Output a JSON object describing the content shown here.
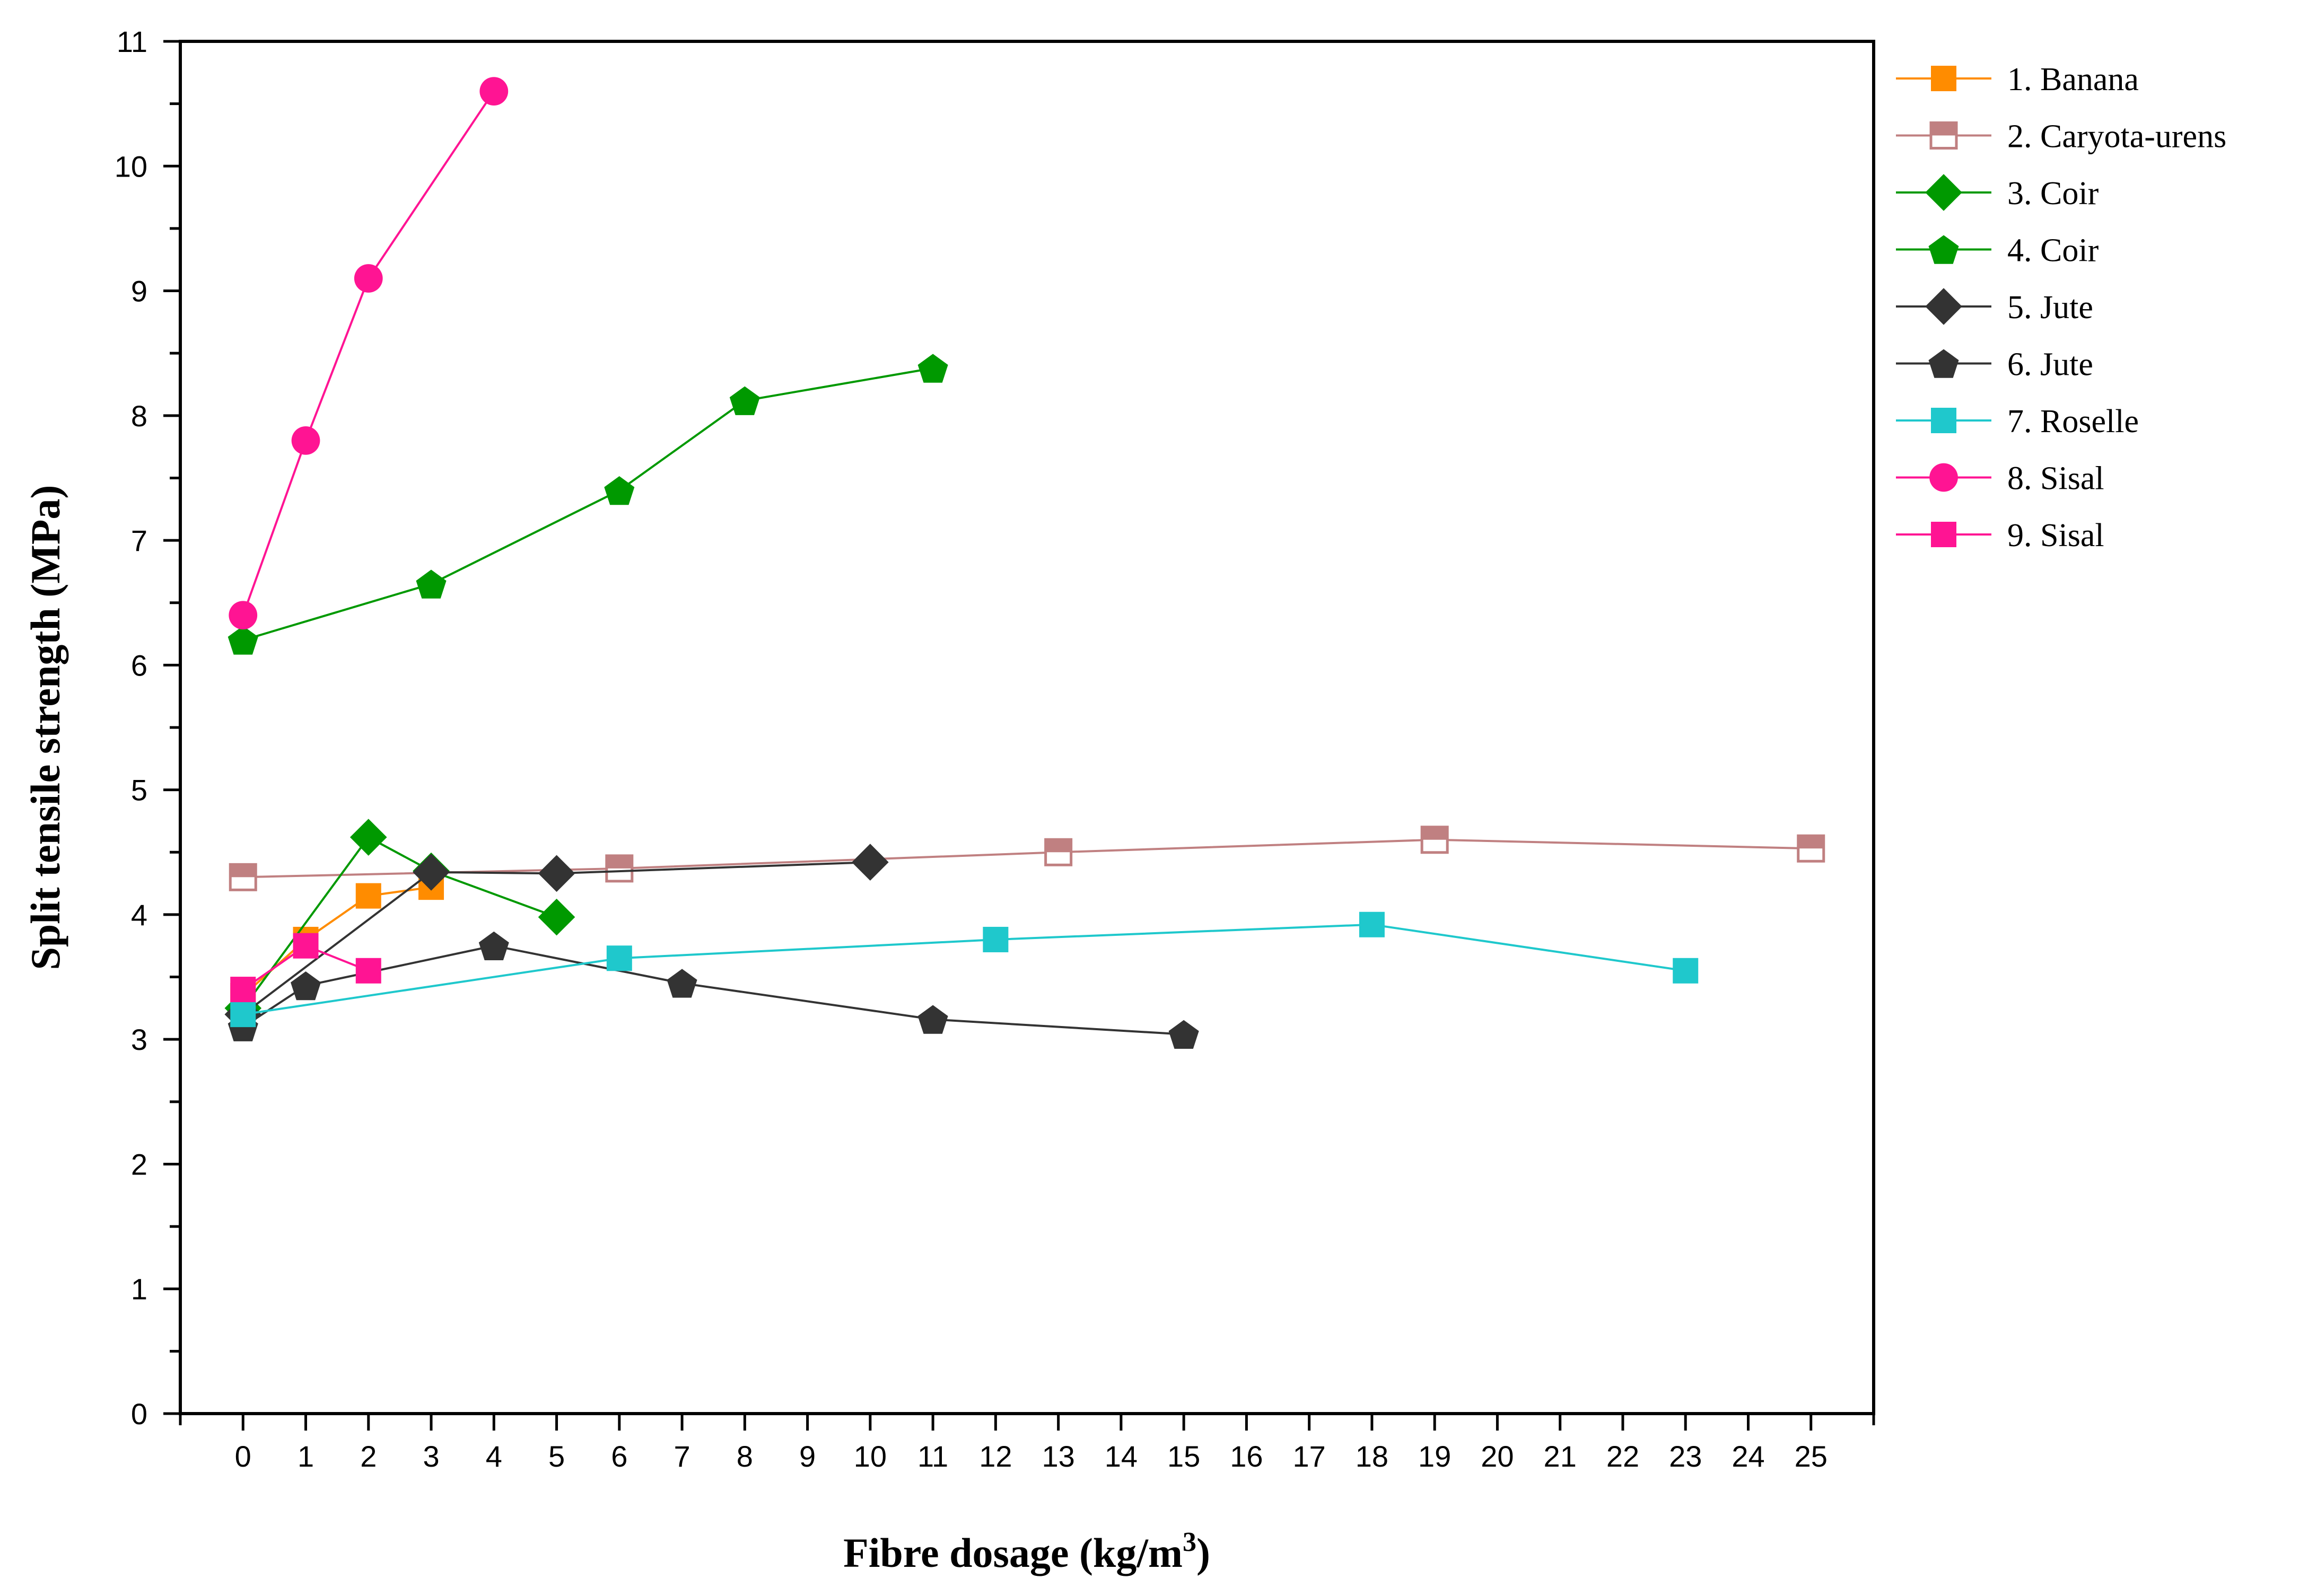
{
  "chart_data": {
    "type": "line",
    "title": "",
    "xlabel": "Fibre dosage (kg/m",
    "xlabel_superscript": "3",
    "xlabel_suffix": ")",
    "ylabel": "Split tensile strength (MPa)",
    "xlim": [
      -1,
      26
    ],
    "ylim": [
      0,
      11
    ],
    "x_ticks": [
      "0",
      "1",
      "2",
      "3",
      "4",
      "5",
      "6",
      "7",
      "8",
      "9",
      "10",
      "11",
      "12",
      "13",
      "14",
      "15",
      "16",
      "17",
      "18",
      "19",
      "20",
      "21",
      "22",
      "23",
      "24",
      "25"
    ],
    "y_ticks": [
      "0",
      "1",
      "2",
      "3",
      "4",
      "5",
      "6",
      "7",
      "8",
      "9",
      "10",
      "11"
    ],
    "grid": false,
    "legend_position": "right",
    "series": [
      {
        "name": "1. Banana",
        "color": "#FF8C00",
        "marker": "square",
        "x": [
          0,
          1,
          2,
          3
        ],
        "y": [
          3.35,
          3.8,
          4.15,
          4.22
        ]
      },
      {
        "name": "2. Caryota-urens",
        "color": "#C08081",
        "marker": "half-square",
        "x": [
          0,
          6,
          13,
          19,
          25
        ],
        "y": [
          4.3,
          4.37,
          4.5,
          4.6,
          4.53
        ]
      },
      {
        "name": "3. Coir",
        "color": "#009900",
        "marker": "diamond",
        "x": [
          0,
          2,
          3,
          5
        ],
        "y": [
          3.25,
          4.62,
          4.35,
          3.98
        ]
      },
      {
        "name": "4. Coir",
        "color": "#009900",
        "marker": "pentagon",
        "x": [
          0,
          3,
          6,
          8,
          11
        ],
        "y": [
          6.2,
          6.65,
          7.4,
          8.12,
          8.38
        ]
      },
      {
        "name": "5. Jute",
        "color": "#333333",
        "marker": "diamond",
        "x": [
          0,
          3,
          5,
          10
        ],
        "y": [
          3.2,
          4.34,
          4.33,
          4.42
        ]
      },
      {
        "name": "6. Jute",
        "color": "#333333",
        "marker": "pentagon",
        "x": [
          0,
          1,
          4,
          7,
          11,
          15
        ],
        "y": [
          3.1,
          3.43,
          3.75,
          3.45,
          3.16,
          3.04
        ]
      },
      {
        "name": "7. Roselle",
        "color": "#1FC8CC",
        "marker": "square",
        "x": [
          0,
          6,
          12,
          18,
          23
        ],
        "y": [
          3.2,
          3.65,
          3.8,
          3.92,
          3.55
        ]
      },
      {
        "name": "8. Sisal",
        "color": "#FF1493",
        "marker": "circle",
        "x": [
          0,
          1,
          2,
          4
        ],
        "y": [
          6.4,
          7.8,
          9.1,
          10.6
        ]
      },
      {
        "name": "9. Sisal",
        "color": "#FF1493",
        "marker": "square",
        "x": [
          0,
          1,
          2
        ],
        "y": [
          3.4,
          3.75,
          3.55
        ]
      }
    ]
  }
}
